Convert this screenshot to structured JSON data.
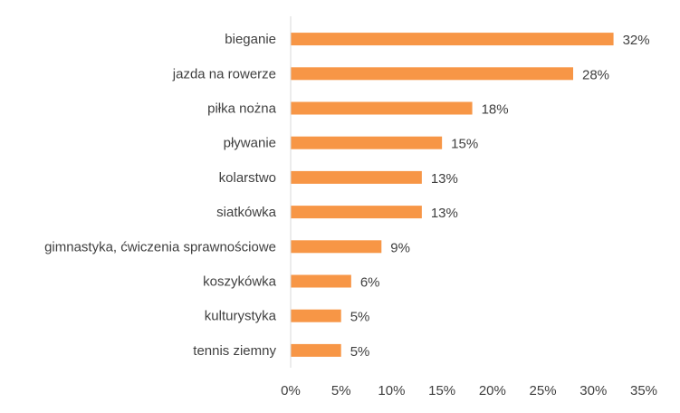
{
  "chart_data": {
    "type": "bar",
    "orientation": "horizontal",
    "categories": [
      "bieganie",
      "jazda na rowerze",
      "piłka nożna",
      "pływanie",
      "kolarstwo",
      "siatkówka",
      "gimnastyka, ćwiczenia sprawnościowe",
      "koszykówka",
      "kulturystyka",
      "tennis ziemny"
    ],
    "values": [
      32,
      28,
      18,
      15,
      13,
      13,
      9,
      6,
      5,
      5
    ],
    "value_labels": [
      "32%",
      "28%",
      "18%",
      "15%",
      "13%",
      "13%",
      "9%",
      "6%",
      "5%",
      "5%"
    ],
    "x_ticks": [
      0,
      5,
      10,
      15,
      20,
      25,
      30,
      35
    ],
    "x_tick_labels": [
      "0%",
      "5%",
      "10%",
      "15%",
      "20%",
      "25%",
      "30%",
      "35%"
    ],
    "xlim": [
      0,
      35
    ],
    "unit": "%",
    "title": "",
    "xlabel": "",
    "ylabel": "",
    "grid": false,
    "legend": false,
    "bar_color": "#F79646",
    "axis_color": "#D9D9D9",
    "text_color": "#404040"
  }
}
